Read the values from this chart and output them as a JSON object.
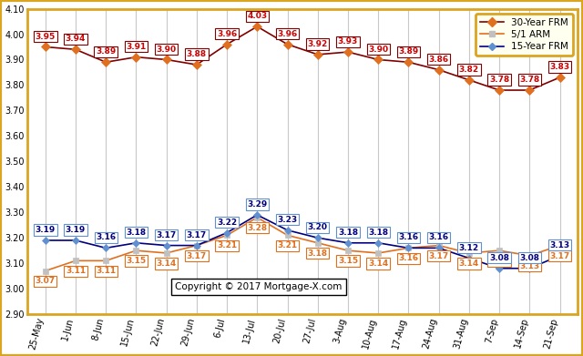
{
  "x_labels": [
    "25-May",
    "1-Jun",
    "8-Jun",
    "15-Jun",
    "22-Jun",
    "29-Jun",
    "6-Jul",
    "13-Jul",
    "20-Jul",
    "27-Jul",
    "3-Aug",
    "10-Aug",
    "17-Aug",
    "24-Aug",
    "31-Aug",
    "7-Sep",
    "14-Sep",
    "21-Sep"
  ],
  "frm30": [
    3.95,
    3.94,
    3.89,
    3.91,
    3.9,
    3.88,
    3.96,
    4.03,
    3.96,
    3.92,
    3.93,
    3.9,
    3.89,
    3.86,
    3.82,
    3.78,
    3.78,
    3.83
  ],
  "arm51": [
    3.07,
    3.11,
    3.11,
    3.15,
    3.14,
    3.17,
    3.21,
    3.28,
    3.21,
    3.18,
    3.15,
    3.14,
    3.16,
    3.17,
    3.14,
    3.15,
    3.13,
    3.17
  ],
  "frm15": [
    3.19,
    3.19,
    3.16,
    3.18,
    3.17,
    3.17,
    3.22,
    3.29,
    3.23,
    3.2,
    3.18,
    3.18,
    3.16,
    3.16,
    3.12,
    3.08,
    3.08,
    3.13
  ],
  "frm30_line_color": "#800000",
  "frm30_marker_color": "#E07020",
  "arm51_line_color": "#E07020",
  "arm51_marker_color": "#C0C0C0",
  "frm15_line_color": "#000080",
  "frm15_marker_color": "#6090D0",
  "bg_color": "#FFFFFF",
  "plot_bg_color": "#FFFFFF",
  "outer_border_color": "#DAA520",
  "legend_bg": "#FFFFF0",
  "legend_border": "#DAA520",
  "grid_color": "#C8C8C8",
  "frm30_label_color": "#CC0000",
  "frm30_box_edge": "#800000",
  "arm51_label_color": "#E07020",
  "arm51_box_edge": "#E07020",
  "frm15_label_color": "#000080",
  "frm15_box_edge": "#6090D0",
  "ylim": [
    2.9,
    4.1
  ],
  "yticks": [
    2.9,
    3.0,
    3.1,
    3.2,
    3.3,
    3.4,
    3.5,
    3.6,
    3.7,
    3.8,
    3.9,
    4.0,
    4.1
  ],
  "copyright_text": "Copyright © 2017 Mortgage-X.com",
  "label_fontsize": 6.5,
  "tick_fontsize": 7.0
}
